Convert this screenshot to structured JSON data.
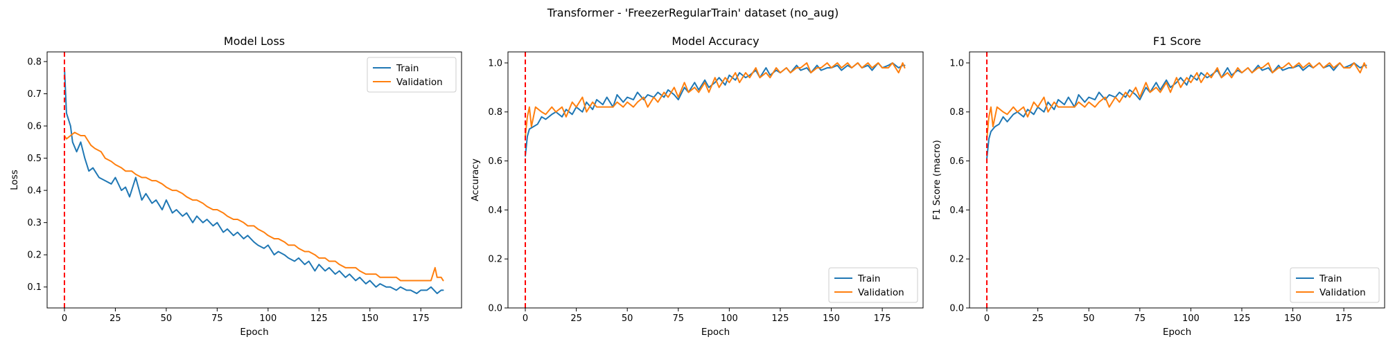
{
  "figure": {
    "suptitle": "Transformer - 'FreezerRegularTrain' dataset (no_aug)"
  },
  "colors": {
    "train": "#1f77b4",
    "validation": "#ff7f0e",
    "marker_line": "#ff0000",
    "axes": "#000000"
  },
  "chart_data": [
    {
      "type": "line",
      "title": "Model Loss",
      "xlabel": "Epoch",
      "ylabel": "Loss",
      "xlim": [
        -8.5,
        195
      ],
      "ylim": [
        0.035,
        0.83
      ],
      "xticks": [
        0,
        25,
        50,
        75,
        100,
        125,
        150,
        175
      ],
      "yticks": [
        0.1,
        0.2,
        0.3,
        0.4,
        0.5,
        0.6,
        0.7,
        0.8
      ],
      "tick_decimals": 1,
      "vline_x": 0,
      "legend": "top-right",
      "grid": false,
      "series": [
        {
          "name": "Train",
          "x": [
            0,
            1,
            3,
            4,
            6,
            8,
            10,
            12,
            14,
            17,
            20,
            23,
            25,
            28,
            30,
            32,
            35,
            38,
            40,
            43,
            45,
            48,
            50,
            53,
            55,
            58,
            60,
            63,
            65,
            68,
            70,
            73,
            75,
            78,
            80,
            83,
            85,
            88,
            90,
            93,
            95,
            98,
            100,
            103,
            105,
            108,
            110,
            113,
            115,
            118,
            120,
            123,
            125,
            128,
            130,
            133,
            135,
            138,
            140,
            143,
            145,
            148,
            150,
            153,
            155,
            158,
            160,
            163,
            165,
            168,
            170,
            173,
            175,
            178,
            180,
            183,
            185,
            186
          ],
          "values": [
            0.78,
            0.64,
            0.6,
            0.55,
            0.52,
            0.55,
            0.5,
            0.46,
            0.47,
            0.44,
            0.43,
            0.42,
            0.44,
            0.4,
            0.41,
            0.38,
            0.44,
            0.37,
            0.39,
            0.36,
            0.37,
            0.34,
            0.37,
            0.33,
            0.34,
            0.32,
            0.33,
            0.3,
            0.32,
            0.3,
            0.31,
            0.29,
            0.3,
            0.27,
            0.28,
            0.26,
            0.27,
            0.25,
            0.26,
            0.24,
            0.23,
            0.22,
            0.23,
            0.2,
            0.21,
            0.2,
            0.19,
            0.18,
            0.19,
            0.17,
            0.18,
            0.15,
            0.17,
            0.15,
            0.16,
            0.14,
            0.15,
            0.13,
            0.14,
            0.12,
            0.13,
            0.11,
            0.12,
            0.1,
            0.11,
            0.1,
            0.1,
            0.09,
            0.1,
            0.09,
            0.09,
            0.08,
            0.09,
            0.09,
            0.1,
            0.08,
            0.09,
            0.09
          ]
        },
        {
          "name": "Validation",
          "x": [
            0,
            1,
            3,
            5,
            8,
            10,
            13,
            15,
            18,
            20,
            23,
            25,
            28,
            30,
            33,
            35,
            38,
            40,
            43,
            45,
            48,
            50,
            53,
            55,
            58,
            60,
            63,
            65,
            68,
            70,
            73,
            75,
            78,
            80,
            83,
            85,
            88,
            90,
            93,
            95,
            98,
            100,
            103,
            105,
            108,
            110,
            113,
            115,
            118,
            120,
            123,
            125,
            128,
            130,
            133,
            135,
            138,
            140,
            143,
            145,
            148,
            150,
            153,
            155,
            158,
            160,
            163,
            165,
            168,
            170,
            173,
            175,
            178,
            180,
            182,
            183,
            185,
            186
          ],
          "values": [
            0.57,
            0.56,
            0.57,
            0.58,
            0.57,
            0.57,
            0.54,
            0.53,
            0.52,
            0.5,
            0.49,
            0.48,
            0.47,
            0.46,
            0.46,
            0.45,
            0.44,
            0.44,
            0.43,
            0.43,
            0.42,
            0.41,
            0.4,
            0.4,
            0.39,
            0.38,
            0.37,
            0.37,
            0.36,
            0.35,
            0.34,
            0.34,
            0.33,
            0.32,
            0.31,
            0.31,
            0.3,
            0.29,
            0.29,
            0.28,
            0.27,
            0.26,
            0.25,
            0.25,
            0.24,
            0.23,
            0.23,
            0.22,
            0.21,
            0.21,
            0.2,
            0.19,
            0.19,
            0.18,
            0.18,
            0.17,
            0.16,
            0.16,
            0.16,
            0.15,
            0.14,
            0.14,
            0.14,
            0.13,
            0.13,
            0.13,
            0.13,
            0.12,
            0.12,
            0.12,
            0.12,
            0.12,
            0.12,
            0.12,
            0.16,
            0.13,
            0.13,
            0.12
          ]
        }
      ]
    },
    {
      "type": "line",
      "title": "Model Accuracy",
      "xlabel": "Epoch",
      "ylabel": "Accuracy",
      "xlim": [
        -8.5,
        195
      ],
      "ylim": [
        0.0,
        1.045
      ],
      "xticks": [
        0,
        25,
        50,
        75,
        100,
        125,
        150,
        175
      ],
      "yticks": [
        0.0,
        0.2,
        0.4,
        0.6,
        0.8,
        1.0
      ],
      "tick_decimals": 1,
      "vline_x": 0,
      "legend": "bottom-right",
      "grid": false,
      "series": [
        {
          "name": "Train",
          "x": [
            0,
            1,
            2,
            4,
            6,
            8,
            10,
            13,
            15,
            18,
            20,
            23,
            25,
            28,
            30,
            33,
            35,
            38,
            40,
            43,
            45,
            48,
            50,
            53,
            55,
            58,
            60,
            63,
            65,
            68,
            70,
            73,
            75,
            78,
            80,
            83,
            85,
            88,
            90,
            93,
            95,
            98,
            100,
            103,
            105,
            108,
            110,
            113,
            115,
            118,
            120,
            123,
            125,
            128,
            130,
            133,
            135,
            138,
            140,
            143,
            145,
            148,
            150,
            153,
            155,
            158,
            160,
            163,
            165,
            168,
            170,
            173,
            175,
            178,
            180,
            183,
            185,
            186
          ],
          "values": [
            0.62,
            0.7,
            0.73,
            0.74,
            0.75,
            0.78,
            0.77,
            0.79,
            0.8,
            0.78,
            0.81,
            0.79,
            0.82,
            0.8,
            0.84,
            0.81,
            0.85,
            0.83,
            0.86,
            0.82,
            0.87,
            0.84,
            0.86,
            0.85,
            0.88,
            0.85,
            0.87,
            0.86,
            0.88,
            0.86,
            0.89,
            0.87,
            0.85,
            0.9,
            0.88,
            0.92,
            0.89,
            0.93,
            0.9,
            0.92,
            0.94,
            0.91,
            0.95,
            0.93,
            0.96,
            0.94,
            0.95,
            0.97,
            0.94,
            0.98,
            0.95,
            0.97,
            0.96,
            0.98,
            0.96,
            0.99,
            0.97,
            0.98,
            0.96,
            0.99,
            0.97,
            0.98,
            0.98,
            0.99,
            0.97,
            0.99,
            0.98,
            1.0,
            0.98,
            0.99,
            0.97,
            1.0,
            0.98,
            0.99,
            1.0,
            0.98,
            0.99,
            0.99
          ]
        },
        {
          "name": "Validation",
          "x": [
            0,
            1,
            2,
            3,
            5,
            8,
            10,
            13,
            15,
            18,
            20,
            23,
            25,
            28,
            30,
            33,
            35,
            38,
            40,
            43,
            45,
            48,
            50,
            53,
            55,
            58,
            60,
            63,
            65,
            68,
            70,
            73,
            75,
            78,
            80,
            83,
            85,
            88,
            90,
            93,
            95,
            98,
            100,
            103,
            105,
            108,
            110,
            113,
            115,
            118,
            120,
            123,
            125,
            128,
            130,
            133,
            135,
            138,
            140,
            143,
            145,
            148,
            150,
            153,
            155,
            158,
            160,
            163,
            165,
            168,
            170,
            173,
            175,
            178,
            180,
            183,
            185,
            186
          ],
          "values": [
            0.7,
            0.78,
            0.82,
            0.74,
            0.82,
            0.8,
            0.79,
            0.82,
            0.8,
            0.82,
            0.78,
            0.84,
            0.82,
            0.86,
            0.8,
            0.84,
            0.82,
            0.82,
            0.82,
            0.82,
            0.84,
            0.82,
            0.84,
            0.82,
            0.84,
            0.86,
            0.82,
            0.86,
            0.84,
            0.88,
            0.86,
            0.9,
            0.86,
            0.92,
            0.88,
            0.9,
            0.88,
            0.92,
            0.88,
            0.94,
            0.9,
            0.94,
            0.92,
            0.96,
            0.92,
            0.96,
            0.94,
            0.98,
            0.94,
            0.96,
            0.94,
            0.98,
            0.96,
            0.98,
            0.96,
            0.98,
            0.98,
            1.0,
            0.96,
            0.98,
            0.98,
            1.0,
            0.98,
            1.0,
            0.98,
            1.0,
            0.98,
            1.0,
            0.98,
            1.0,
            0.98,
            1.0,
            0.98,
            0.98,
            1.0,
            0.96,
            1.0,
            0.98
          ]
        }
      ]
    },
    {
      "type": "line",
      "title": "F1 Score",
      "xlabel": "Epoch",
      "ylabel": "F1 Score (macro)",
      "xlim": [
        -8.5,
        195
      ],
      "ylim": [
        0.0,
        1.045
      ],
      "xticks": [
        0,
        25,
        50,
        75,
        100,
        125,
        150,
        175
      ],
      "yticks": [
        0.0,
        0.2,
        0.4,
        0.6,
        0.8,
        1.0
      ],
      "tick_decimals": 1,
      "vline_x": 0,
      "legend": "bottom-right",
      "grid": false,
      "series": [
        {
          "name": "Train",
          "x": [
            0,
            1,
            2,
            4,
            6,
            8,
            10,
            13,
            15,
            18,
            20,
            23,
            25,
            28,
            30,
            33,
            35,
            38,
            40,
            43,
            45,
            48,
            50,
            53,
            55,
            58,
            60,
            63,
            65,
            68,
            70,
            73,
            75,
            78,
            80,
            83,
            85,
            88,
            90,
            93,
            95,
            98,
            100,
            103,
            105,
            108,
            110,
            113,
            115,
            118,
            120,
            123,
            125,
            128,
            130,
            133,
            135,
            138,
            140,
            143,
            145,
            148,
            150,
            153,
            155,
            158,
            160,
            163,
            165,
            168,
            170,
            173,
            175,
            178,
            180,
            183,
            185,
            186
          ],
          "values": [
            0.61,
            0.69,
            0.72,
            0.74,
            0.75,
            0.78,
            0.76,
            0.79,
            0.8,
            0.78,
            0.81,
            0.79,
            0.82,
            0.8,
            0.84,
            0.81,
            0.85,
            0.83,
            0.86,
            0.82,
            0.87,
            0.84,
            0.86,
            0.85,
            0.88,
            0.85,
            0.87,
            0.86,
            0.88,
            0.86,
            0.89,
            0.87,
            0.85,
            0.9,
            0.88,
            0.92,
            0.89,
            0.93,
            0.9,
            0.92,
            0.94,
            0.91,
            0.95,
            0.93,
            0.96,
            0.94,
            0.95,
            0.97,
            0.94,
            0.98,
            0.95,
            0.97,
            0.96,
            0.98,
            0.96,
            0.99,
            0.97,
            0.98,
            0.96,
            0.99,
            0.97,
            0.98,
            0.98,
            0.99,
            0.97,
            0.99,
            0.98,
            1.0,
            0.98,
            0.99,
            0.97,
            1.0,
            0.98,
            0.99,
            1.0,
            0.98,
            0.99,
            0.99
          ]
        },
        {
          "name": "Validation",
          "x": [
            0,
            1,
            2,
            3,
            5,
            8,
            10,
            13,
            15,
            18,
            20,
            23,
            25,
            28,
            30,
            33,
            35,
            38,
            40,
            43,
            45,
            48,
            50,
            53,
            55,
            58,
            60,
            63,
            65,
            68,
            70,
            73,
            75,
            78,
            80,
            83,
            85,
            88,
            90,
            93,
            95,
            98,
            100,
            103,
            105,
            108,
            110,
            113,
            115,
            118,
            120,
            123,
            125,
            128,
            130,
            133,
            135,
            138,
            140,
            143,
            145,
            148,
            150,
            153,
            155,
            158,
            160,
            163,
            165,
            168,
            170,
            173,
            175,
            178,
            180,
            183,
            185,
            186
          ],
          "values": [
            0.69,
            0.78,
            0.82,
            0.74,
            0.82,
            0.8,
            0.79,
            0.82,
            0.8,
            0.82,
            0.78,
            0.84,
            0.82,
            0.86,
            0.8,
            0.84,
            0.82,
            0.82,
            0.82,
            0.82,
            0.84,
            0.82,
            0.84,
            0.82,
            0.84,
            0.86,
            0.82,
            0.86,
            0.84,
            0.88,
            0.86,
            0.9,
            0.86,
            0.92,
            0.88,
            0.9,
            0.88,
            0.92,
            0.88,
            0.94,
            0.9,
            0.94,
            0.92,
            0.96,
            0.92,
            0.96,
            0.94,
            0.98,
            0.94,
            0.96,
            0.94,
            0.98,
            0.96,
            0.98,
            0.96,
            0.98,
            0.98,
            1.0,
            0.96,
            0.98,
            0.98,
            1.0,
            0.98,
            1.0,
            0.98,
            1.0,
            0.98,
            1.0,
            0.98,
            1.0,
            0.98,
            1.0,
            0.98,
            0.98,
            1.0,
            0.96,
            1.0,
            0.98
          ]
        }
      ]
    }
  ]
}
